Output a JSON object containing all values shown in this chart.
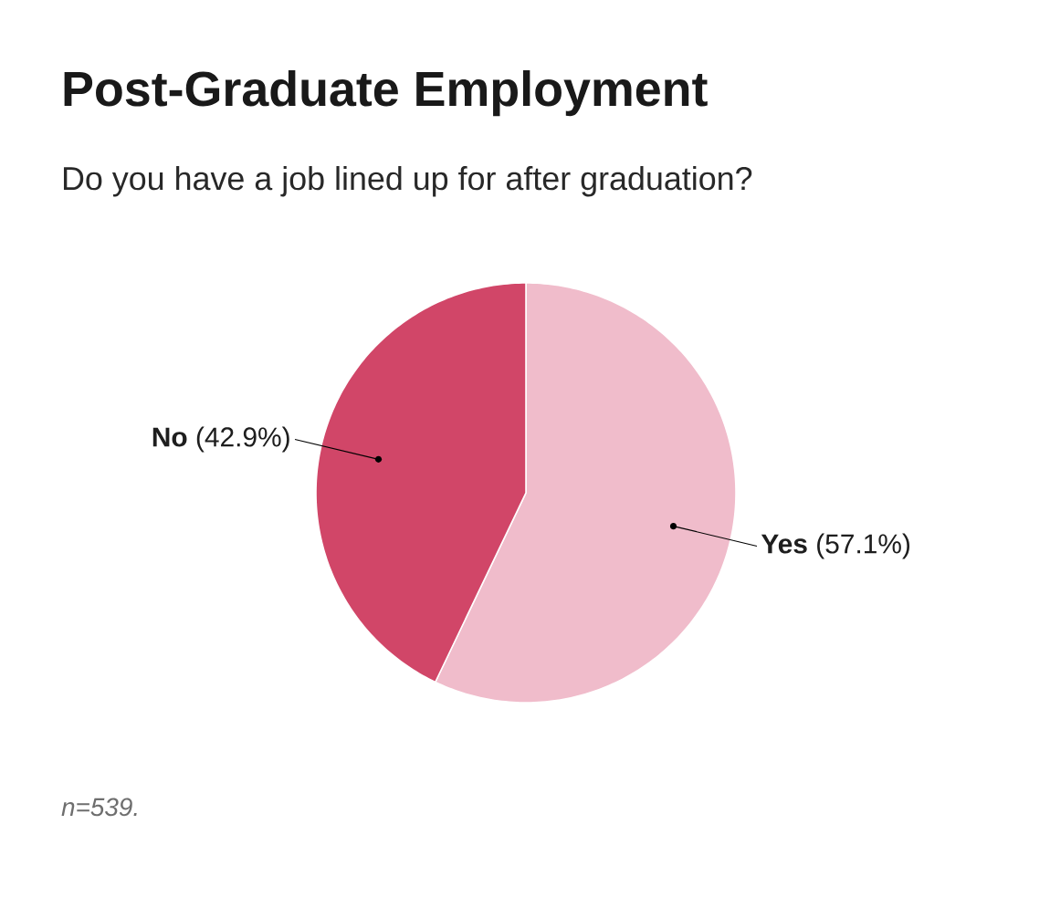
{
  "chart_data": {
    "type": "pie",
    "title": "Post-Graduate Employment",
    "subtitle": "Do you have a job lined up for after graduation?",
    "categories": [
      "Yes",
      "No"
    ],
    "values": [
      57.1,
      42.9
    ],
    "value_labels": [
      "(57.1%)",
      "(42.9%)"
    ],
    "colors": [
      "#f0bccb",
      "#d14668"
    ],
    "annotations": [
      "n=539."
    ]
  }
}
